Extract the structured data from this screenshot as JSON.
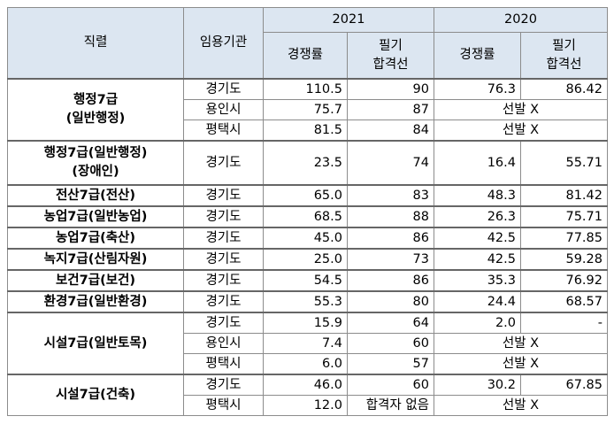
{
  "header": {
    "position": "직렬",
    "agency": "임용기관",
    "years": [
      "2021",
      "2020"
    ],
    "sub": [
      "경쟁률",
      "필기\n합격선",
      "경쟁률",
      "필기\n합격선"
    ]
  },
  "groups": [
    {
      "position": "행정7급\n(일반행정)",
      "rows": [
        {
          "agency": "경기도",
          "cells": [
            "110.5",
            "90",
            "76.3",
            "86.42"
          ]
        },
        {
          "agency": "용인시",
          "cells": [
            "75.7",
            "87"
          ],
          "note_2020": "선발 X"
        },
        {
          "agency": "평택시",
          "cells": [
            "81.5",
            "84"
          ],
          "note_2020": "선발 X"
        }
      ]
    },
    {
      "position": "행정7급(일반행정)\n(장애인)",
      "rows": [
        {
          "agency": "경기도",
          "cells": [
            "23.5",
            "74",
            "16.4",
            "55.71"
          ]
        }
      ]
    },
    {
      "position": "전산7급(전산)",
      "rows": [
        {
          "agency": "경기도",
          "cells": [
            "65.0",
            "83",
            "48.3",
            "81.42"
          ]
        }
      ]
    },
    {
      "position": "농업7급(일반농업)",
      "rows": [
        {
          "agency": "경기도",
          "cells": [
            "68.5",
            "88",
            "26.3",
            "75.71"
          ]
        }
      ]
    },
    {
      "position": "농업7급(축산)",
      "rows": [
        {
          "agency": "경기도",
          "cells": [
            "45.0",
            "86",
            "42.5",
            "77.85"
          ]
        }
      ]
    },
    {
      "position": "녹지7급(산림자원)",
      "rows": [
        {
          "agency": "경기도",
          "cells": [
            "25.0",
            "73",
            "42.5",
            "59.28"
          ]
        }
      ]
    },
    {
      "position": "보건7급(보건)",
      "rows": [
        {
          "agency": "경기도",
          "cells": [
            "54.5",
            "86",
            "35.3",
            "76.92"
          ]
        }
      ]
    },
    {
      "position": "환경7급(일반환경)",
      "rows": [
        {
          "agency": "경기도",
          "cells": [
            "55.3",
            "80",
            "24.4",
            "68.57"
          ]
        }
      ]
    },
    {
      "position": "시설7급(일반토목)",
      "rows": [
        {
          "agency": "경기도",
          "cells": [
            "15.9",
            "64",
            "2.0",
            "-"
          ]
        },
        {
          "agency": "용인시",
          "cells": [
            "7.4",
            "60"
          ],
          "note_2020": "선발 X"
        },
        {
          "agency": "평택시",
          "cells": [
            "6.0",
            "57"
          ],
          "note_2020": "선발 X"
        }
      ]
    },
    {
      "position": "시설7급(건축)",
      "rows": [
        {
          "agency": "경기도",
          "cells": [
            "46.0",
            "60",
            "30.2",
            "67.85"
          ]
        },
        {
          "agency": "평택시",
          "cells": [
            "12.0",
            "합격자 없음"
          ],
          "note_2020": "선발 X"
        }
      ]
    }
  ]
}
